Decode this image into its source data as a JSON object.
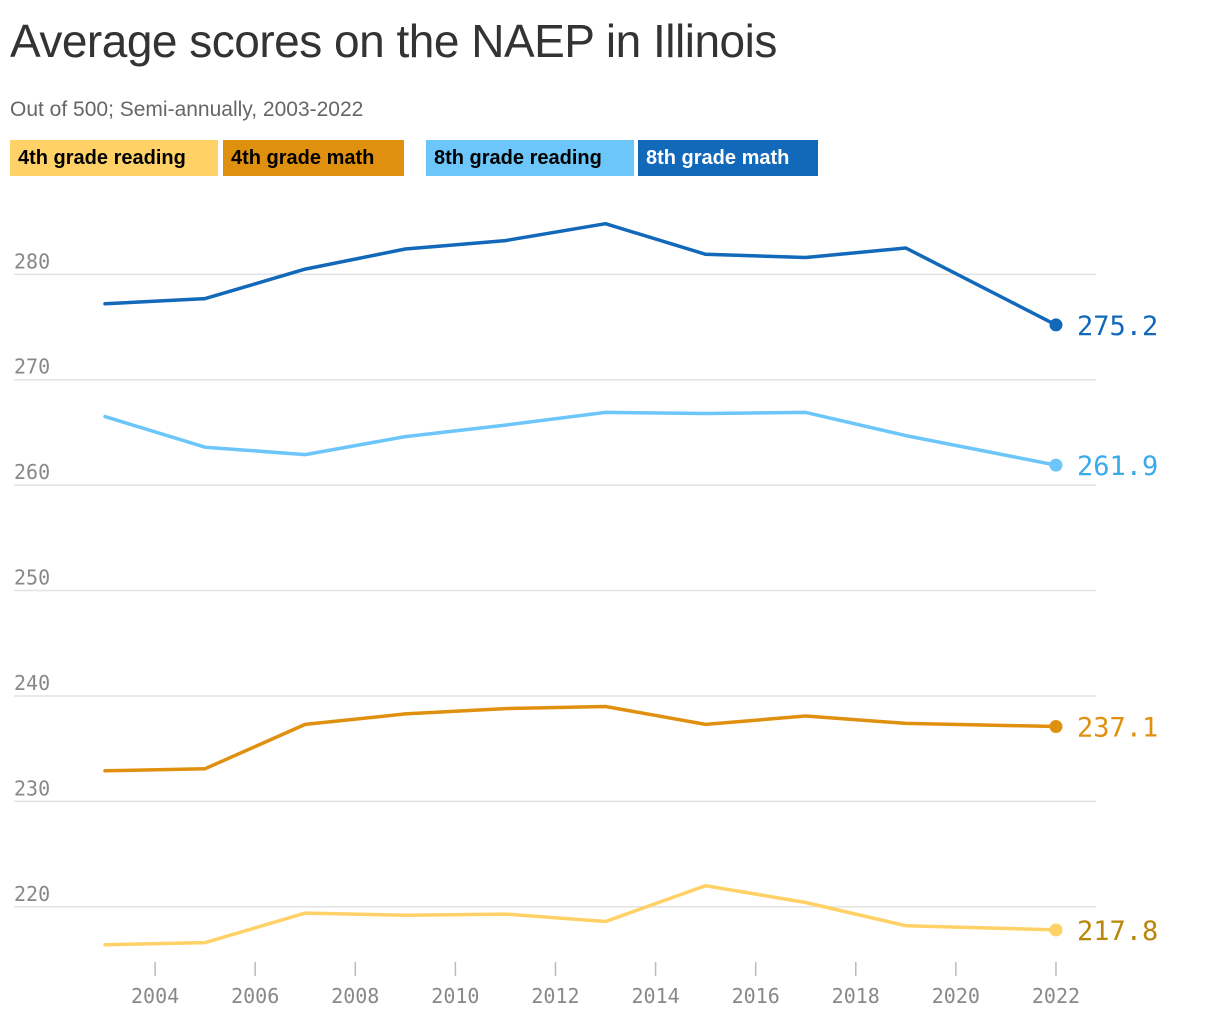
{
  "chart_data": {
    "type": "line",
    "title": "Average scores on the NAEP in Illinois",
    "subtitle": "Out of 500; Semi-annually, 2003-2022",
    "x": [
      2003,
      2005,
      2007,
      2009,
      2011,
      2013,
      2015,
      2017,
      2019,
      2022
    ],
    "xlim": [
      2002.3,
      2022.8
    ],
    "ylim": [
      214,
      288
    ],
    "x_ticks": [
      2004,
      2006,
      2008,
      2010,
      2012,
      2014,
      2016,
      2018,
      2020,
      2022
    ],
    "y_ticks": [
      220,
      230,
      240,
      250,
      260,
      270,
      280
    ],
    "grid": true,
    "legend_placement": "top-left",
    "series": [
      {
        "name": "4th grade reading",
        "color": "#FFD166",
        "text_color": "#000000",
        "end_color": "#B8860B",
        "end_label": "217.8",
        "values": [
          216.4,
          216.6,
          219.4,
          219.2,
          219.3,
          218.6,
          222.0,
          220.4,
          218.2,
          217.8
        ]
      },
      {
        "name": "4th grade math",
        "color": "#E0900F",
        "text_color": "#000000",
        "end_color": "#E0900F",
        "end_label": "237.1",
        "values": [
          232.9,
          233.1,
          237.3,
          238.3,
          238.8,
          239.0,
          237.3,
          238.1,
          237.4,
          237.1
        ]
      },
      {
        "name": "8th grade reading",
        "color": "#6CC6F9",
        "text_color": "#000000",
        "end_color": "#3BAAE8",
        "end_label": "261.9",
        "values": [
          266.5,
          263.6,
          262.9,
          264.6,
          265.7,
          266.9,
          266.8,
          266.9,
          264.7,
          261.9
        ]
      },
      {
        "name": "8th grade math",
        "color": "#1268B9",
        "text_color": "#ffffff",
        "end_color": "#1268B9",
        "end_label": "275.2",
        "values": [
          277.2,
          277.7,
          280.5,
          282.4,
          283.2,
          284.8,
          281.9,
          281.6,
          282.5,
          275.2
        ]
      }
    ]
  }
}
